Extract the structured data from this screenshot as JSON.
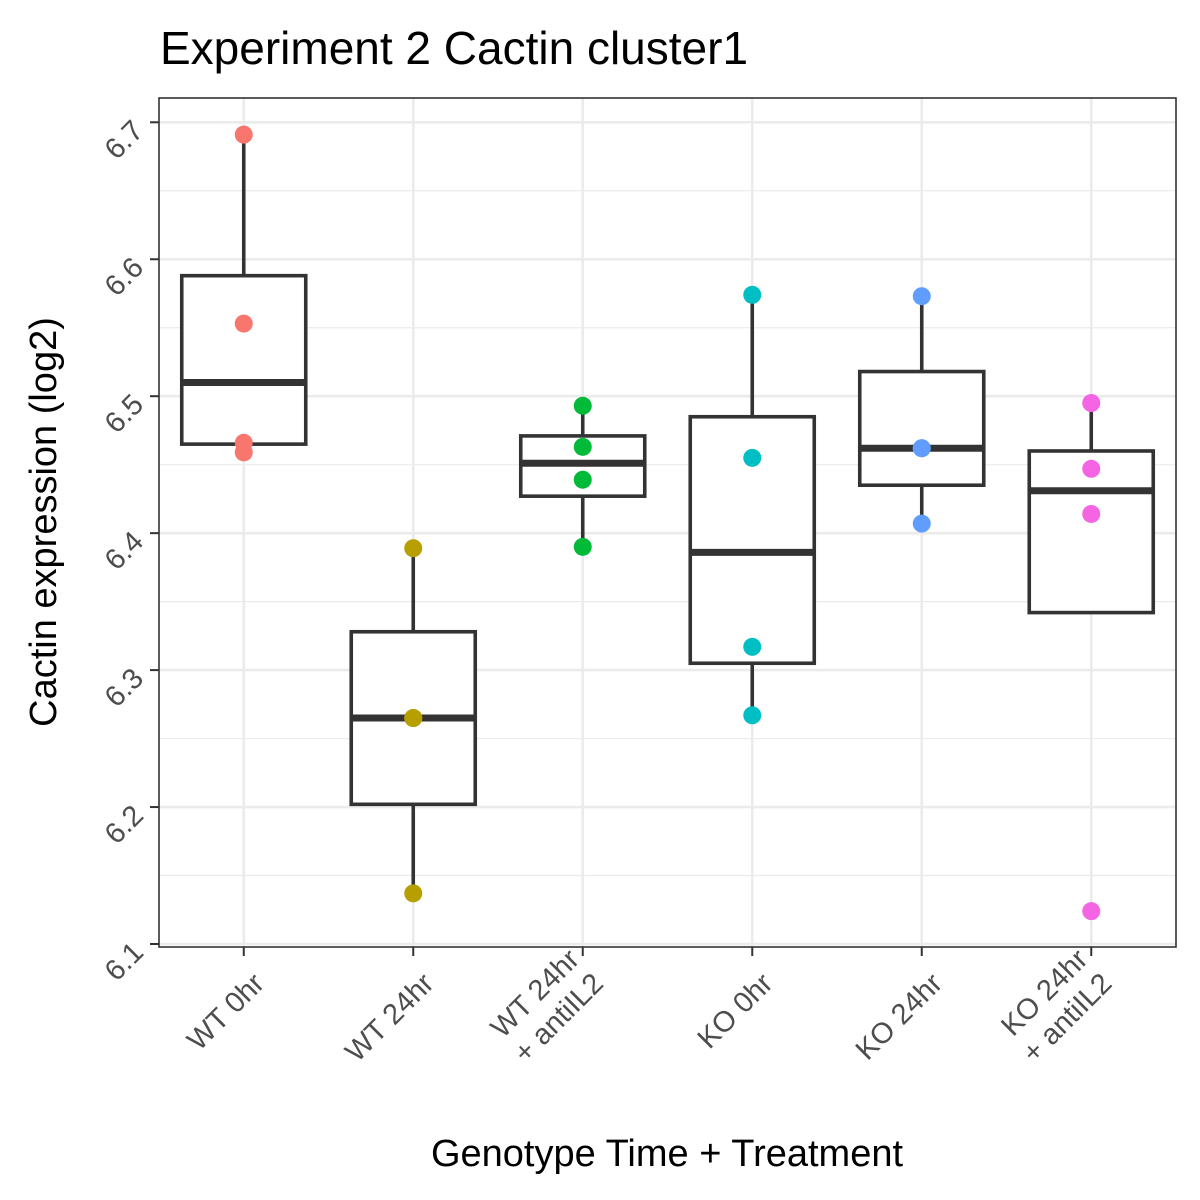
{
  "chart_data": {
    "type": "box",
    "title": "Experiment 2 Cactin cluster1",
    "xlabel": "Genotype Time + Treatment",
    "ylabel": "Cactin expression (log2)",
    "ylim": [
      6.1,
      6.7
    ],
    "yticks": [
      "6.1",
      "6.2",
      "6.3",
      "6.4",
      "6.5",
      "6.6",
      "6.7"
    ],
    "grid": true,
    "legend": "none",
    "groups": [
      {
        "label_lines": [
          "WT 0hr"
        ],
        "color": "#F8766D",
        "box": {
          "q1": 6.465,
          "median": 6.51,
          "q3": 6.588,
          "whisker_low": 6.465,
          "whisker_high": 6.691
        },
        "points": [
          6.691,
          6.553,
          6.466,
          6.459
        ]
      },
      {
        "label_lines": [
          "WT 24hr"
        ],
        "color": "#B79F00",
        "box": {
          "q1": 6.202,
          "median": 6.265,
          "q3": 6.328,
          "whisker_low": 6.137,
          "whisker_high": 6.389
        },
        "points": [
          6.389,
          6.265,
          6.265,
          6.137
        ]
      },
      {
        "label_lines": [
          "WT 24hr",
          "+ antiIL2"
        ],
        "color": "#00BA38",
        "box": {
          "q1": 6.427,
          "median": 6.451,
          "q3": 6.471,
          "whisker_low": 6.39,
          "whisker_high": 6.493
        },
        "points": [
          6.493,
          6.463,
          6.439,
          6.39
        ]
      },
      {
        "label_lines": [
          "KO 0hr"
        ],
        "color": "#00BFC4",
        "box": {
          "q1": 6.305,
          "median": 6.386,
          "q3": 6.485,
          "whisker_low": 6.267,
          "whisker_high": 6.574
        },
        "points": [
          6.574,
          6.455,
          6.317,
          6.267
        ]
      },
      {
        "label_lines": [
          "KO 24hr"
        ],
        "color": "#619CFF",
        "box": {
          "q1": 6.435,
          "median": 6.462,
          "q3": 6.518,
          "whisker_low": 6.407,
          "whisker_high": 6.573
        },
        "points": [
          6.573,
          6.462,
          6.462,
          6.407
        ]
      },
      {
        "label_lines": [
          "KO 24hr",
          "+ antiIL2"
        ],
        "color": "#F564E3",
        "box": {
          "q1": 6.342,
          "median": 6.431,
          "q3": 6.46,
          "whisker_low": 6.342,
          "whisker_high": 6.495
        },
        "points": [
          6.495,
          6.447,
          6.414,
          6.124
        ]
      }
    ]
  }
}
